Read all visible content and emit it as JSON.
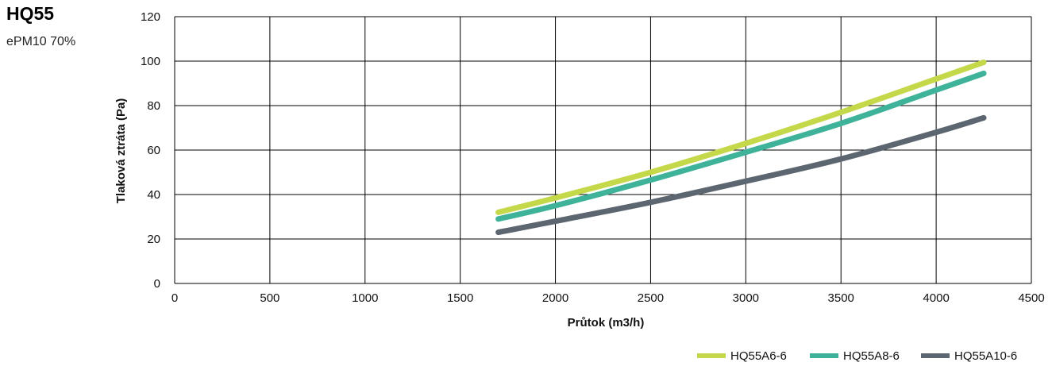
{
  "header": {
    "title": "HQ55",
    "subtitle": "ePM10 70%"
  },
  "chart_data": {
    "type": "line",
    "xlabel": "Průtok (m3/h)",
    "ylabel": "Tlaková ztráta (Pa)",
    "xlim": [
      0,
      4500
    ],
    "ylim": [
      0,
      120
    ],
    "xticks": [
      0,
      500,
      1000,
      1500,
      2000,
      2500,
      3000,
      3500,
      4000,
      4500
    ],
    "yticks": [
      0,
      20,
      40,
      60,
      80,
      100,
      120
    ],
    "grid": true,
    "legend_position": "bottom-right",
    "series": [
      {
        "name": "HQ55A6-6",
        "color": "#c5d84a",
        "x": [
          1700,
          2000,
          2500,
          3000,
          3500,
          4000,
          4250
        ],
        "y": [
          32,
          38.5,
          50,
          63,
          77,
          92,
          99.5
        ]
      },
      {
        "name": "HQ55A8-6",
        "color": "#3fb39a",
        "x": [
          1700,
          2000,
          2500,
          3000,
          3500,
          4000,
          4250
        ],
        "y": [
          29,
          35,
          46.5,
          59,
          72,
          87,
          94.5
        ]
      },
      {
        "name": "HQ55A10-6",
        "color": "#5c6670",
        "x": [
          1700,
          2000,
          2500,
          3000,
          3500,
          4000,
          4250
        ],
        "y": [
          23,
          28,
          36.5,
          46,
          56,
          68,
          74.5
        ]
      }
    ]
  }
}
